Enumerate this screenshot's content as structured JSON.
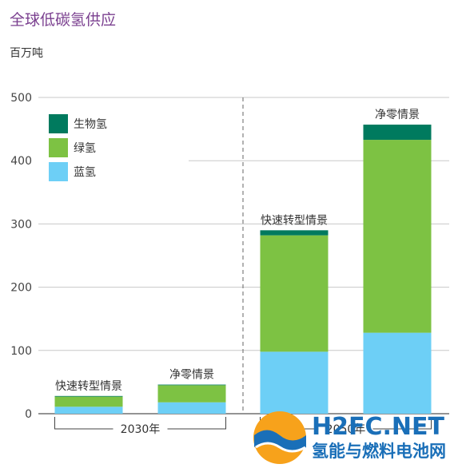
{
  "chart_data": {
    "type": "bar",
    "stacked": true,
    "title": "全球低碳氢供应",
    "ylabel": "百万吨",
    "ylim": [
      0,
      500
    ],
    "yticks": [
      0,
      100,
      200,
      300,
      400,
      500
    ],
    "grid": true,
    "legend_position": "top-left",
    "categories": [
      "快速转型情景",
      "净零情景",
      "快速转型情景",
      "净零情景"
    ],
    "groups": [
      {
        "label": "2030年",
        "indices": [
          0,
          1
        ]
      },
      {
        "label": "2050年",
        "indices": [
          2,
          3
        ]
      }
    ],
    "series": [
      {
        "name": "蓝氢",
        "color": "#6dcff6",
        "values": [
          11,
          18,
          98,
          128
        ]
      },
      {
        "name": "绿氢",
        "color": "#7dc243",
        "values": [
          16,
          27,
          184,
          305
        ]
      },
      {
        "name": "生物氢",
        "color": "#007a5e",
        "values": [
          1,
          1,
          8,
          24
        ]
      }
    ]
  },
  "watermark": {
    "logo_text": "H2FC.NET",
    "site_name": "氢能与燃料电池网"
  }
}
